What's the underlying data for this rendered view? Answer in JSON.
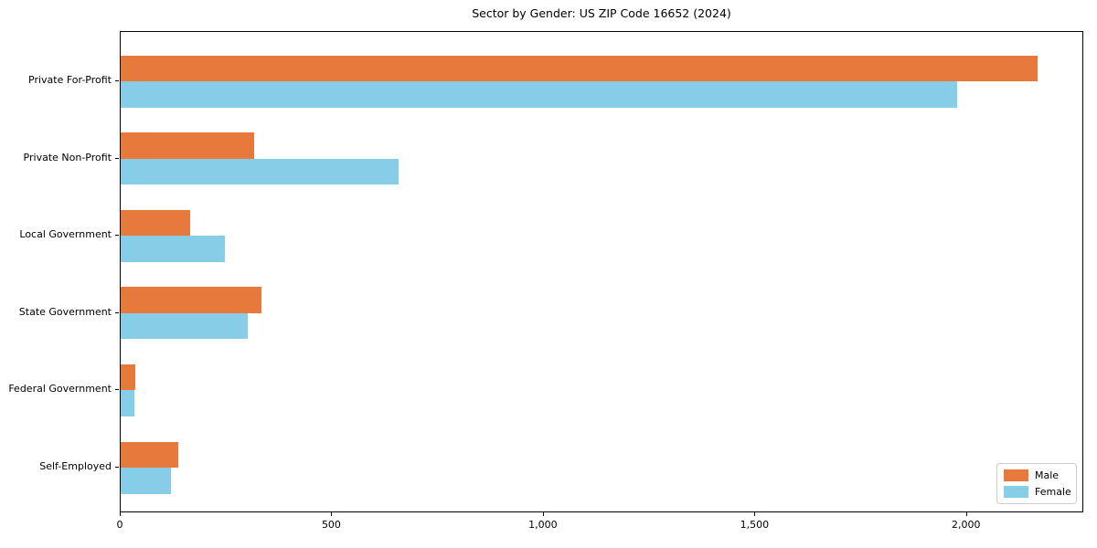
{
  "chart_data": {
    "type": "bar",
    "orientation": "horizontal",
    "title": "Sector by Gender: US ZIP Code 16652 (2024)",
    "categories": [
      "Private For-Profit",
      "Private Non-Profit",
      "Local Government",
      "State Government",
      "Federal Government",
      "Self-Employed"
    ],
    "series": [
      {
        "name": "Male",
        "color": "#e7793c",
        "values": [
          2170,
          317,
          164,
          334,
          35,
          137
        ]
      },
      {
        "name": "Female",
        "color": "#88cde8",
        "values": [
          1980,
          659,
          246,
          300,
          33,
          119
        ]
      }
    ],
    "xlabel": "",
    "ylabel": "",
    "xlim": [
      0,
      2277
    ],
    "xticks": [
      0,
      500,
      1000,
      1500,
      2000
    ],
    "xtick_labels": [
      "0",
      "500",
      "1,000",
      "1,500",
      "2,000"
    ],
    "grid": false,
    "legend_position": "lower right",
    "axis_color": "#000000",
    "background_color": "#ffffff"
  }
}
